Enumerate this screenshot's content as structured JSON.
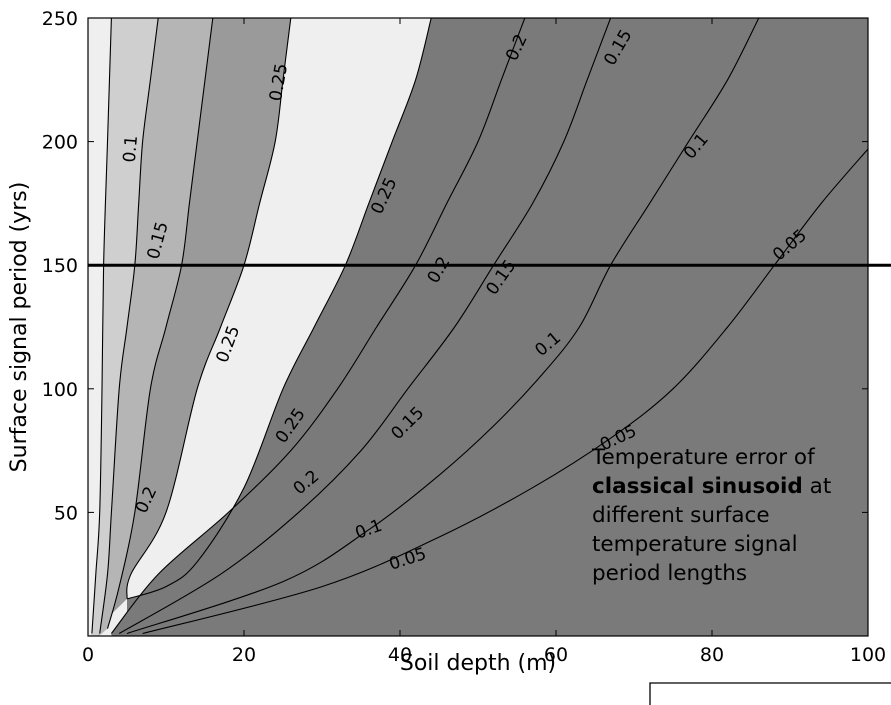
{
  "chart_data": {
    "type": "contour",
    "xlabel": "Soil depth (m)",
    "ylabel": "Surface signal period (yrs)",
    "xlim": [
      0,
      100
    ],
    "ylim": [
      0,
      250
    ],
    "x_ticks": [
      "0",
      "20",
      "40",
      "60",
      "80",
      "100"
    ],
    "y_ticks": [
      "50",
      "100",
      "150",
      "200",
      "250"
    ],
    "x_tick_values": [
      0,
      20,
      40,
      60,
      80,
      100
    ],
    "y_tick_values": [
      50,
      100,
      150,
      200,
      250
    ],
    "grid": false,
    "fill_colors": {
      "outer": "#efefef",
      "0.05": "#e4e4e4",
      "0.1": "#cfcfcf",
      "0.15": "#b5b5b5",
      "0.2": "#9a9a9a",
      "0.25": "#7a7a7a"
    },
    "reference_line": {
      "y": 150,
      "color": "#000000"
    },
    "contours": [
      {
        "level": "0.05",
        "side": "right",
        "points": [
          [
            7,
            1
          ],
          [
            30,
            20
          ],
          [
            45,
            40
          ],
          [
            57,
            60
          ],
          [
            67,
            80
          ],
          [
            75,
            100
          ],
          [
            82,
            125
          ],
          [
            88,
            150
          ],
          [
            94,
            175
          ],
          [
            100,
            197
          ]
        ]
      },
      {
        "level": "0.1",
        "side": "right",
        "points": [
          [
            5,
            1
          ],
          [
            25,
            22
          ],
          [
            36,
            43
          ],
          [
            45,
            65
          ],
          [
            52,
            85
          ],
          [
            58,
            105
          ],
          [
            63,
            125
          ],
          [
            67,
            150
          ],
          [
            72,
            175
          ],
          [
            77,
            200
          ],
          [
            82,
            225
          ],
          [
            86,
            250
          ]
        ]
      },
      {
        "level": "0.15",
        "side": "right",
        "points": [
          [
            4,
            1
          ],
          [
            17,
            25
          ],
          [
            27,
            50
          ],
          [
            35,
            75
          ],
          [
            41,
            100
          ],
          [
            47,
            125
          ],
          [
            52,
            150
          ],
          [
            57,
            175
          ],
          [
            61,
            200
          ],
          [
            64,
            225
          ],
          [
            67,
            250
          ]
        ]
      },
      {
        "level": "0.2",
        "side": "right",
        "points": [
          [
            3,
            1
          ],
          [
            9,
            25
          ],
          [
            18,
            50
          ],
          [
            26,
            75
          ],
          [
            32,
            100
          ],
          [
            37,
            125
          ],
          [
            42,
            150
          ],
          [
            46,
            175
          ],
          [
            50,
            200
          ],
          [
            53,
            225
          ],
          [
            56,
            250
          ]
        ]
      },
      {
        "level": "0.25",
        "side": "right",
        "points": [
          [
            5,
            15
          ],
          [
            10,
            20
          ],
          [
            14,
            30
          ],
          [
            20,
            60
          ],
          [
            25,
            100
          ],
          [
            29,
            125
          ],
          [
            33,
            150
          ],
          [
            36,
            175
          ],
          [
            39,
            200
          ],
          [
            42,
            225
          ],
          [
            44,
            250
          ]
        ]
      },
      {
        "level": "0.25",
        "side": "left",
        "points": [
          [
            5,
            15
          ],
          [
            5.5,
            25
          ],
          [
            10,
            50
          ],
          [
            14,
            100
          ],
          [
            17,
            125
          ],
          [
            20,
            150
          ],
          [
            22,
            175
          ],
          [
            24,
            200
          ],
          [
            25,
            225
          ],
          [
            26,
            250
          ]
        ]
      },
      {
        "level": "0.2",
        "side": "left",
        "points": [
          [
            2.5,
            3
          ],
          [
            4,
            20
          ],
          [
            6,
            50
          ],
          [
            8,
            100
          ],
          [
            10,
            125
          ],
          [
            12,
            150
          ],
          [
            13,
            175
          ],
          [
            14,
            200
          ],
          [
            15,
            225
          ],
          [
            16,
            250
          ]
        ]
      },
      {
        "level": "0.15",
        "side": "left",
        "points": [
          [
            1.5,
            1
          ],
          [
            2.5,
            25
          ],
          [
            3,
            50
          ],
          [
            4,
            100
          ],
          [
            5,
            125
          ],
          [
            6,
            150
          ],
          [
            6.5,
            175
          ],
          [
            7,
            200
          ],
          [
            8,
            225
          ],
          [
            9,
            250
          ]
        ]
      },
      {
        "level": "0.1",
        "side": "left",
        "points": [
          [
            0.5,
            1
          ],
          [
            1,
            25
          ],
          [
            1.5,
            50
          ],
          [
            1.8,
            100
          ],
          [
            2,
            150
          ],
          [
            2.5,
            200
          ],
          [
            3,
            250
          ]
        ]
      }
    ],
    "contour_labels": [
      {
        "text": "0.1",
        "x": 5.5,
        "y": 197,
        "angle": -85
      },
      {
        "text": "0.15",
        "x": 9,
        "y": 160,
        "angle": -75
      },
      {
        "text": "0.2",
        "x": 7.5,
        "y": 55,
        "angle": -65
      },
      {
        "text": "0.25",
        "x": 24.5,
        "y": 224,
        "angle": -80
      },
      {
        "text": "0.25",
        "x": 18,
        "y": 118,
        "angle": -70
      },
      {
        "text": "0.25",
        "x": 26,
        "y": 85,
        "angle": -55
      },
      {
        "text": "0.25",
        "x": 38,
        "y": 178,
        "angle": -65
      },
      {
        "text": "0.2",
        "x": 28,
        "y": 62,
        "angle": -40
      },
      {
        "text": "0.2",
        "x": 45,
        "y": 148,
        "angle": -60
      },
      {
        "text": "0.2",
        "x": 55,
        "y": 238,
        "angle": -65
      },
      {
        "text": "0.15",
        "x": 41,
        "y": 86,
        "angle": -45
      },
      {
        "text": "0.15",
        "x": 53,
        "y": 145,
        "angle": -55
      },
      {
        "text": "0.15",
        "x": 68,
        "y": 238,
        "angle": -60
      },
      {
        "text": "0.1",
        "x": 36,
        "y": 43,
        "angle": -20
      },
      {
        "text": "0.1",
        "x": 59,
        "y": 118,
        "angle": -40
      },
      {
        "text": "0.1",
        "x": 78,
        "y": 198,
        "angle": -50
      },
      {
        "text": "0.05",
        "x": 41,
        "y": 31,
        "angle": -18
      },
      {
        "text": "0.05",
        "x": 68,
        "y": 80,
        "angle": -25
      },
      {
        "text": "0.05",
        "x": 90,
        "y": 158,
        "angle": -40
      }
    ]
  },
  "annotation": {
    "line1": "Temperature error of",
    "bold": "classical sinusoid",
    "after_bold": " at",
    "line3": "different surface",
    "line4": "temperature signal",
    "line5": "period lengths"
  }
}
